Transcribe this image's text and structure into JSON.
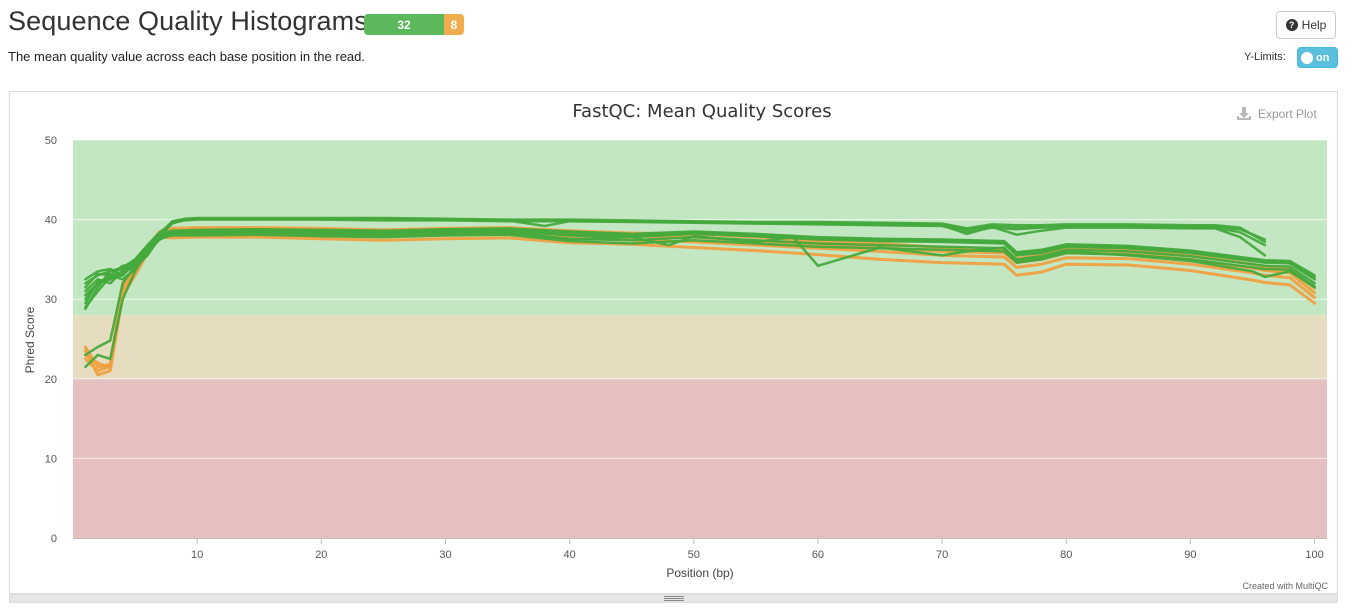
{
  "header": {
    "title": "Sequence Quality Histograms",
    "pass_count": "32",
    "warn_count": "8",
    "subtitle": "The mean quality value across each base position in the read."
  },
  "controls": {
    "help_label": "Help",
    "ylimits_label": "Y-Limits:",
    "toggle_label": "on",
    "export_label": "Export Plot",
    "credit": "Created with MultiQC"
  },
  "colors": {
    "pass": "#5cb85c",
    "warn": "#f0ad4e",
    "series_pass": "#44aa3d",
    "series_warn": "#f0a040",
    "band_good": "#c3e6c3",
    "band_ok": "#e6dcbf",
    "band_bad": "#e6c0c0"
  },
  "chart_data": {
    "type": "line",
    "title": "FastQC: Mean Quality Scores",
    "xlabel": "Position (bp)",
    "ylabel": "Phred Score",
    "xlim": [
      0,
      101
    ],
    "ylim": [
      0,
      50
    ],
    "xticks": [
      10,
      20,
      30,
      40,
      50,
      60,
      70,
      80,
      90,
      100
    ],
    "yticks": [
      0,
      10,
      20,
      30,
      40,
      50
    ],
    "bands": [
      {
        "from": 28,
        "to": 50,
        "color": "#c3e6c3"
      },
      {
        "from": 20,
        "to": 28,
        "color": "#e6dcbf"
      },
      {
        "from": 0,
        "to": 20,
        "color": "#e6c0c0"
      }
    ],
    "grid": true,
    "legend": "none",
    "series": [
      {
        "status": "pass",
        "x": [
          1,
          2,
          3,
          4,
          5,
          6,
          7,
          8,
          9,
          10,
          15,
          20,
          25,
          30,
          35,
          40,
          45,
          50,
          55,
          60,
          65,
          70,
          72,
          74,
          76,
          78,
          80,
          85,
          90,
          92,
          94,
          96
        ],
        "y": [
          32.0,
          33.0,
          33.5,
          34.0,
          35.0,
          36.5,
          38.0,
          39.5,
          40.0,
          40.1,
          40.1,
          40.1,
          40.1,
          40.0,
          39.9,
          39.9,
          39.8,
          39.7,
          39.6,
          39.6,
          39.5,
          39.4,
          38.7,
          39.2,
          39.0,
          39.1,
          39.2,
          39.2,
          39.1,
          39.1,
          38.8,
          37.5
        ]
      },
      {
        "status": "pass",
        "x": [
          1,
          2,
          3,
          4,
          5,
          6,
          7,
          8,
          9,
          10,
          15,
          20,
          25,
          30,
          35,
          40,
          45,
          50,
          55,
          60,
          65,
          70,
          72,
          74,
          76,
          78,
          80,
          85,
          90,
          92,
          94,
          96
        ],
        "y": [
          31.5,
          33.2,
          33.0,
          34.2,
          34.5,
          36.0,
          38.2,
          39.8,
          40.1,
          40.2,
          40.2,
          40.2,
          40.2,
          40.1,
          40.0,
          40.0,
          39.9,
          39.8,
          39.7,
          39.7,
          39.6,
          39.5,
          38.9,
          39.4,
          39.3,
          39.3,
          39.4,
          39.4,
          39.3,
          39.3,
          39.0,
          37.2
        ]
      },
      {
        "status": "pass",
        "x": [
          1,
          2,
          3,
          4,
          5,
          6,
          7,
          8,
          9,
          10,
          15,
          20,
          25,
          30,
          35,
          40,
          45,
          50,
          55,
          60,
          65,
          70,
          72,
          74,
          76,
          78,
          80,
          85,
          90,
          92,
          94,
          96
        ],
        "y": [
          30.5,
          32.0,
          32.5,
          33.2,
          35.0,
          36.8,
          38.4,
          39.6,
          39.9,
          40.0,
          40.0,
          40.0,
          39.9,
          39.9,
          39.8,
          39.8,
          39.7,
          39.6,
          39.5,
          39.4,
          39.3,
          39.2,
          38.4,
          39.0,
          38.8,
          39.0,
          39.1,
          39.1,
          39.0,
          39.0,
          38.4,
          36.8
        ]
      },
      {
        "status": "pass",
        "x": [
          1,
          2,
          3,
          4,
          5,
          6,
          7,
          8,
          9,
          10,
          15,
          20,
          25,
          30,
          35,
          38,
          40,
          45,
          50,
          55,
          60,
          65,
          70,
          72,
          74,
          76,
          78,
          80,
          85,
          90,
          92,
          94,
          96
        ],
        "y": [
          29.0,
          31.0,
          32.8,
          33.5,
          34.8,
          36.2,
          38.0,
          39.7,
          40.0,
          40.1,
          40.1,
          40.1,
          40.0,
          40.0,
          39.9,
          39.2,
          39.8,
          39.8,
          39.7,
          39.6,
          39.5,
          39.4,
          39.3,
          38.2,
          39.1,
          38.1,
          38.6,
          39.0,
          39.0,
          38.9,
          38.9,
          37.8,
          35.5
        ]
      },
      {
        "status": "pass",
        "x": [
          1,
          2,
          3,
          4,
          5,
          6,
          7,
          8,
          10,
          15,
          20,
          25,
          30,
          35,
          40,
          45,
          50,
          55,
          60,
          65,
          70,
          75,
          76,
          78,
          80,
          85,
          90,
          95,
          96,
          98,
          100
        ],
        "y": [
          32.5,
          33.5,
          33.8,
          33.0,
          34.5,
          36.0,
          37.5,
          38.2,
          38.4,
          38.5,
          38.4,
          38.3,
          38.5,
          38.6,
          38.0,
          37.8,
          38.2,
          37.9,
          37.5,
          37.3,
          37.2,
          37.0,
          35.5,
          35.8,
          36.6,
          36.4,
          35.8,
          34.8,
          34.6,
          34.5,
          32.5
        ]
      },
      {
        "status": "pass",
        "x": [
          1,
          2,
          3,
          4,
          5,
          6,
          7,
          8,
          10,
          15,
          20,
          25,
          30,
          35,
          40,
          45,
          50,
          55,
          60,
          65,
          70,
          75,
          76,
          78,
          80,
          85,
          90,
          95,
          96,
          98,
          100
        ],
        "y": [
          31.0,
          32.5,
          32.0,
          33.5,
          34.0,
          35.5,
          37.8,
          38.5,
          38.6,
          38.7,
          38.6,
          38.5,
          38.7,
          38.8,
          38.4,
          38.1,
          38.4,
          38.1,
          37.7,
          37.5,
          37.4,
          37.2,
          35.8,
          36.1,
          36.8,
          36.6,
          36.0,
          35.0,
          34.8,
          34.7,
          32.8
        ]
      },
      {
        "status": "pass",
        "x": [
          1,
          2,
          3,
          4,
          5,
          6,
          7,
          8,
          10,
          15,
          20,
          25,
          30,
          35,
          40,
          45,
          50,
          55,
          60,
          65,
          70,
          75,
          76,
          78,
          80,
          85,
          90,
          95,
          96,
          98,
          100
        ],
        "y": [
          30.0,
          32.0,
          33.0,
          32.5,
          33.8,
          35.8,
          37.6,
          38.3,
          38.2,
          38.3,
          38.1,
          37.9,
          38.2,
          38.3,
          37.6,
          37.4,
          37.8,
          37.4,
          37.0,
          36.8,
          36.6,
          36.4,
          35.0,
          35.4,
          36.2,
          36.0,
          35.4,
          34.4,
          34.2,
          34.1,
          32.0
        ]
      },
      {
        "status": "pass",
        "x": [
          1,
          2,
          3,
          4,
          5,
          6,
          7,
          8,
          10,
          15,
          20,
          25,
          30,
          35,
          40,
          45,
          48,
          50,
          55,
          58,
          60,
          65,
          70,
          72,
          75,
          76,
          78,
          80,
          85,
          90,
          95,
          96,
          98,
          100
        ],
        "y": [
          28.8,
          31.5,
          33.5,
          33.8,
          34.2,
          36.3,
          37.9,
          38.4,
          38.5,
          38.5,
          38.3,
          38.2,
          38.4,
          38.5,
          37.5,
          37.8,
          36.8,
          37.9,
          37.2,
          37.8,
          34.2,
          36.5,
          35.5,
          36.0,
          36.5,
          34.8,
          35.2,
          36.0,
          35.5,
          34.8,
          33.5,
          32.8,
          33.5,
          31.5
        ]
      },
      {
        "status": "pass",
        "x": [
          1,
          2,
          3,
          4,
          5,
          6,
          7,
          8,
          10,
          15,
          20,
          25,
          30,
          35,
          40,
          45,
          50,
          55,
          60,
          65,
          70,
          75,
          76,
          78,
          80,
          85,
          90,
          95,
          96,
          98,
          100
        ],
        "y": [
          29.5,
          32.2,
          32.6,
          33.0,
          34.6,
          36.4,
          37.7,
          38.0,
          38.0,
          38.1,
          37.9,
          37.8,
          38.0,
          38.1,
          37.3,
          37.0,
          37.4,
          37.0,
          36.6,
          36.4,
          36.2,
          36.0,
          34.6,
          35.0,
          35.8,
          35.6,
          35.0,
          34.0,
          33.8,
          33.7,
          31.6
        ]
      },
      {
        "status": "pass",
        "x": [
          1,
          2,
          3,
          4,
          5,
          6,
          7,
          8,
          10,
          15,
          20,
          25,
          30,
          35,
          40,
          45,
          50,
          55,
          60,
          65,
          70,
          75,
          76,
          78,
          80,
          85,
          90,
          95,
          96,
          98,
          100
        ],
        "y": [
          21.5,
          23.0,
          22.5,
          30.0,
          33.5,
          36.2,
          38.1,
          38.4,
          38.5,
          38.6,
          38.5,
          38.4,
          38.6,
          38.7,
          38.1,
          37.9,
          38.3,
          37.9,
          37.6,
          37.4,
          37.3,
          37.1,
          35.6,
          35.9,
          36.7,
          36.5,
          35.9,
          34.9,
          34.7,
          34.6,
          32.6
        ]
      },
      {
        "status": "pass",
        "x": [
          1,
          2,
          3,
          4,
          5,
          6,
          7,
          8,
          10,
          15,
          20,
          25,
          30,
          35,
          40,
          45,
          50,
          55,
          60,
          65,
          70,
          75,
          76,
          78,
          80,
          85,
          90,
          95,
          96,
          98,
          100
        ],
        "y": [
          23.0,
          24.0,
          24.8,
          32.0,
          34.2,
          36.6,
          38.3,
          38.6,
          38.7,
          38.8,
          38.7,
          38.6,
          38.8,
          38.9,
          38.5,
          38.2,
          38.5,
          38.2,
          37.8,
          37.6,
          37.5,
          37.3,
          35.9,
          36.2,
          36.9,
          36.7,
          36.1,
          35.1,
          34.9,
          34.8,
          33.0
        ]
      },
      {
        "status": "warn",
        "x": [
          1,
          2,
          3,
          4,
          5,
          6,
          7,
          8,
          10,
          15,
          20,
          25,
          30,
          35,
          40,
          45,
          50,
          55,
          60,
          65,
          70,
          75,
          76,
          78,
          80,
          85,
          90,
          95,
          96,
          98,
          100
        ],
        "y": [
          23.5,
          20.5,
          21.0,
          30.5,
          33.0,
          35.8,
          37.8,
          37.7,
          37.8,
          37.8,
          37.6,
          37.4,
          37.6,
          37.7,
          37.1,
          36.9,
          36.5,
          36.1,
          35.6,
          35.0,
          34.6,
          34.4,
          33.0,
          33.4,
          34.4,
          34.3,
          33.6,
          32.4,
          32.1,
          31.8,
          29.5
        ]
      },
      {
        "status": "warn",
        "x": [
          1,
          2,
          3,
          4,
          5,
          6,
          7,
          8,
          10,
          15,
          20,
          25,
          30,
          35,
          40,
          45,
          50,
          55,
          60,
          65,
          70,
          75,
          76,
          78,
          80,
          85,
          90,
          95,
          96,
          98,
          100
        ],
        "y": [
          24.0,
          21.5,
          21.8,
          31.0,
          33.5,
          36.0,
          37.9,
          38.2,
          38.3,
          38.3,
          38.1,
          37.9,
          38.1,
          38.2,
          37.7,
          37.4,
          37.2,
          36.8,
          36.4,
          36.0,
          35.5,
          35.3,
          34.0,
          34.4,
          35.2,
          35.1,
          34.4,
          33.3,
          33.0,
          32.7,
          30.2
        ]
      },
      {
        "status": "warn",
        "x": [
          1,
          2,
          3,
          4,
          5,
          6,
          7,
          8,
          10,
          15,
          20,
          25,
          30,
          35,
          40,
          45,
          50,
          55,
          60,
          65,
          70,
          75,
          76,
          78,
          80,
          85,
          90,
          95,
          96,
          98,
          100
        ],
        "y": [
          23.0,
          22.0,
          21.3,
          31.5,
          33.8,
          36.4,
          38.3,
          38.6,
          38.8,
          38.8,
          38.6,
          38.4,
          38.6,
          38.7,
          38.2,
          37.9,
          37.8,
          37.3,
          36.9,
          36.5,
          36.0,
          35.8,
          34.6,
          35.0,
          35.8,
          35.7,
          35.0,
          33.9,
          33.6,
          33.3,
          30.8
        ]
      },
      {
        "status": "warn",
        "x": [
          1,
          2,
          3,
          4,
          5,
          6,
          7,
          8,
          10,
          15,
          20,
          25,
          30,
          35,
          40,
          45,
          50,
          55,
          60,
          65,
          70,
          75,
          76,
          78,
          80,
          85,
          90,
          95,
          96,
          98,
          100
        ],
        "y": [
          22.5,
          21.0,
          21.6,
          32.0,
          34.0,
          36.6,
          38.5,
          38.9,
          39.0,
          39.0,
          38.9,
          38.7,
          38.9,
          39.0,
          38.6,
          38.3,
          38.2,
          37.8,
          37.3,
          37.0,
          36.5,
          36.3,
          35.1,
          35.5,
          36.3,
          36.2,
          35.5,
          34.4,
          34.1,
          33.8,
          31.4
        ]
      }
    ]
  }
}
